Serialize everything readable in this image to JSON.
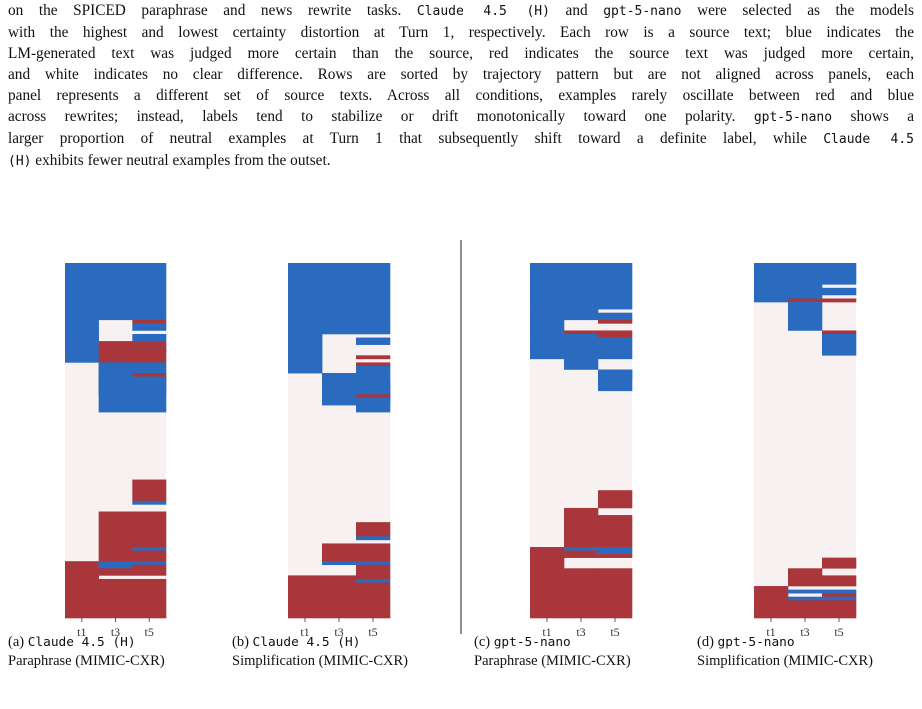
{
  "caption": {
    "lines": [
      [
        {
          "t": "on the SPICED paraphrase and news rewrite tasks. "
        },
        {
          "t": "Claude 4.5 (H)",
          "m": true
        },
        {
          "t": " and "
        },
        {
          "t": "gpt-5-nano",
          "m": true
        },
        {
          "t": " were selected as the models"
        }
      ],
      [
        {
          "t": "with the highest and lowest certainty distortion at Turn 1, respectively. Each row is a source text; blue indicates the"
        }
      ],
      [
        {
          "t": "LM-generated text was judged more certain than the source, red indicates the source text was judged more certain,"
        }
      ],
      [
        {
          "t": "and white indicates no clear difference. Rows are sorted by trajectory pattern but are not aligned across panels, each"
        }
      ],
      [
        {
          "t": "panel represents a different set of source texts. Across all conditions, examples rarely oscillate between red and blue"
        }
      ],
      [
        {
          "t": "across rewrites; instead, labels tend to stabilize or drift monotonically toward one polarity. "
        },
        {
          "t": "gpt-5-nano",
          "m": true
        },
        {
          "t": " shows a"
        }
      ],
      [
        {
          "t": "larger proportion of neutral examples at Turn 1 that subsequently shift toward a definite label, while "
        },
        {
          "t": "Claude 4.5",
          "m": true
        }
      ],
      [
        {
          "t": "(H)",
          "m": true
        },
        {
          "t": " exhibits fewer neutral examples from the outset."
        }
      ]
    ]
  },
  "colors": {
    "blue": "#2b6bbf",
    "red": "#a8363b",
    "neutral": "#f8f1f1"
  },
  "chart_data": [
    {
      "type": "heatmap",
      "x": [
        "t1",
        "t3",
        "t5"
      ],
      "rows_scale": 100,
      "values_note": "each band: [start_row, end_row, t1, t3, t5]; +1 = blue (LM more certain), -1 = red (source more certain), 0 = neutral",
      "bands": [
        [
          0,
          16,
          1,
          1,
          1
        ],
        [
          16,
          17,
          1,
          0,
          -1
        ],
        [
          16,
          17,
          1,
          0,
          0
        ],
        [
          17,
          19,
          1,
          0,
          1
        ],
        [
          19,
          20,
          1,
          0,
          0
        ],
        [
          20,
          22,
          1,
          0,
          1
        ],
        [
          22,
          24,
          1,
          -1,
          -1
        ],
        [
          24,
          25,
          1,
          -1,
          1
        ],
        [
          24,
          25,
          1,
          -1,
          -1
        ],
        [
          25,
          28,
          1,
          -1,
          -1
        ],
        [
          28,
          42,
          0,
          1,
          1
        ],
        [
          28,
          31,
          0,
          1,
          0
        ],
        [
          31,
          37,
          0,
          1,
          0
        ],
        [
          31,
          32,
          0,
          1,
          -1
        ],
        [
          32,
          37,
          0,
          1,
          1
        ],
        [
          37,
          61,
          0,
          0,
          0
        ],
        [
          61,
          67,
          0,
          0,
          -1
        ],
        [
          67,
          68,
          0,
          0,
          1
        ],
        [
          68,
          70,
          0,
          0,
          0
        ],
        [
          70,
          80,
          0,
          -1,
          -1
        ],
        [
          80,
          81,
          0,
          -1,
          1
        ],
        [
          81,
          84,
          0,
          -1,
          -1
        ],
        [
          84,
          89,
          0,
          0,
          0
        ],
        [
          84,
          85,
          -1,
          1,
          1
        ],
        [
          85,
          86,
          -1,
          1,
          -1
        ],
        [
          86,
          88,
          -1,
          -1,
          -1
        ],
        [
          88,
          89,
          -1,
          0,
          0
        ],
        [
          89,
          100,
          -1,
          -1,
          -1
        ]
      ],
      "ticks": [
        "t1",
        "t3",
        "t5"
      ],
      "subcaption_label": "(a)",
      "subcaption_model": "Claude 4.5 (H)",
      "subcaption_task": "Paraphrase (MIMIC-CXR)"
    },
    {
      "type": "heatmap",
      "x": [
        "t1",
        "t3",
        "t5"
      ],
      "rows_scale": 100,
      "bands": [
        [
          0,
          20,
          1,
          1,
          1
        ],
        [
          20,
          21,
          1,
          0,
          0
        ],
        [
          21,
          23,
          1,
          0,
          1
        ],
        [
          23,
          26,
          1,
          0,
          0
        ],
        [
          26,
          27,
          1,
          0,
          -1
        ],
        [
          27,
          28,
          1,
          0,
          0
        ],
        [
          28,
          29,
          1,
          0,
          -1
        ],
        [
          29,
          31,
          1,
          0,
          1
        ],
        [
          20,
          31,
          1,
          0,
          0
        ],
        [
          31,
          40,
          0,
          1,
          1
        ],
        [
          31,
          33,
          0,
          1,
          0
        ],
        [
          33,
          37,
          0,
          1,
          1
        ],
        [
          37,
          38,
          0,
          1,
          -1
        ],
        [
          38,
          40,
          0,
          1,
          1
        ],
        [
          40,
          42,
          0,
          0,
          1
        ],
        [
          42,
          73,
          0,
          0,
          0
        ],
        [
          73,
          77,
          0,
          0,
          -1
        ],
        [
          77,
          78,
          0,
          0,
          1
        ],
        [
          78,
          79,
          0,
          0,
          0
        ],
        [
          79,
          84,
          0,
          -1,
          -1
        ],
        [
          84,
          85,
          0,
          1,
          1
        ],
        [
          85,
          88,
          0,
          0,
          -1
        ],
        [
          88,
          89,
          -1,
          -1,
          -1
        ],
        [
          89,
          90,
          -1,
          -1,
          1
        ],
        [
          90,
          100,
          -1,
          -1,
          -1
        ]
      ],
      "ticks": [
        "t1",
        "t3",
        "t5"
      ],
      "subcaption_label": "(b)",
      "subcaption_model": "Claude 4.5 (H)",
      "subcaption_task": "Simplification (MIMIC-CXR)"
    },
    {
      "type": "heatmap",
      "x": [
        "t1",
        "t3",
        "t5"
      ],
      "rows_scale": 100,
      "bands": [
        [
          0,
          13,
          1,
          1,
          1
        ],
        [
          13,
          14,
          1,
          1,
          0
        ],
        [
          14,
          16,
          1,
          1,
          1
        ],
        [
          16,
          17,
          1,
          0,
          -1
        ],
        [
          17,
          19,
          1,
          0,
          0
        ],
        [
          19,
          20,
          1,
          -1,
          -1
        ],
        [
          20,
          21,
          1,
          1,
          -1
        ],
        [
          21,
          27,
          1,
          1,
          1
        ],
        [
          27,
          30,
          0,
          1,
          0
        ],
        [
          30,
          33,
          0,
          0,
          1
        ],
        [
          30,
          36,
          0,
          0,
          1
        ],
        [
          36,
          64,
          0,
          0,
          0
        ],
        [
          64,
          69,
          0,
          0,
          -1
        ],
        [
          69,
          71,
          0,
          -1,
          0
        ],
        [
          71,
          80,
          0,
          -1,
          -1
        ],
        [
          80,
          81,
          -1,
          1,
          1
        ],
        [
          81,
          82,
          -1,
          -1,
          1
        ],
        [
          82,
          86,
          -1,
          0,
          0
        ],
        [
          82,
          83,
          -1,
          -1,
          -1
        ],
        [
          86,
          100,
          -1,
          -1,
          -1
        ]
      ],
      "ticks": [
        "t1",
        "t3",
        "t5"
      ],
      "subcaption_label": "(c)",
      "subcaption_model": "gpt-5-nano",
      "subcaption_task": "Paraphrase (MIMIC-CXR)"
    },
    {
      "type": "heatmap",
      "x": [
        "t1",
        "t3",
        "t5"
      ],
      "rows_scale": 100,
      "bands": [
        [
          0,
          6,
          1,
          1,
          1
        ],
        [
          6,
          7,
          1,
          1,
          0
        ],
        [
          7,
          9,
          1,
          1,
          1
        ],
        [
          9,
          10,
          1,
          1,
          0
        ],
        [
          10,
          11,
          1,
          -1,
          -1
        ],
        [
          11,
          17,
          0,
          1,
          0
        ],
        [
          17,
          19,
          0,
          1,
          0
        ],
        [
          19,
          20,
          0,
          0,
          -1
        ],
        [
          20,
          26,
          0,
          0,
          1
        ],
        [
          26,
          83,
          0,
          0,
          0
        ],
        [
          83,
          86,
          0,
          0,
          -1
        ],
        [
          86,
          88,
          0,
          -1,
          0
        ],
        [
          88,
          91,
          0,
          -1,
          -1
        ],
        [
          91,
          92,
          -1,
          0,
          0
        ],
        [
          92,
          93,
          -1,
          1,
          1
        ],
        [
          93,
          94,
          -1,
          0,
          -1
        ],
        [
          94,
          95,
          -1,
          1,
          1
        ],
        [
          95,
          100,
          -1,
          -1,
          -1
        ]
      ],
      "ticks": [
        "t1",
        "t3",
        "t5"
      ],
      "subcaption_label": "(d)",
      "subcaption_model": "gpt-5-nano",
      "subcaption_task": "Simplification (MIMIC-CXR)"
    }
  ]
}
